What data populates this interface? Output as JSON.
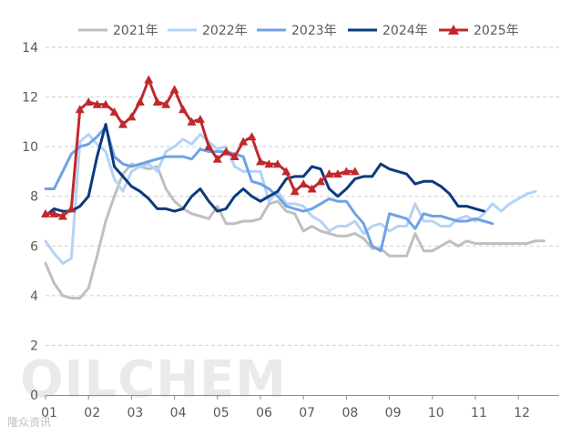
{
  "chart_data": {
    "type": "line",
    "title": "",
    "xlabel": "",
    "ylabel": "",
    "ylim": [
      0,
      14
    ],
    "yticks": [
      0,
      2,
      4,
      6,
      8,
      10,
      12,
      14
    ],
    "x_range": [
      1,
      12.95
    ],
    "x_ticks": [
      {
        "label": "01",
        "x": 1
      },
      {
        "label": "02",
        "x": 2
      },
      {
        "label": "03",
        "x": 3
      },
      {
        "label": "04",
        "x": 4
      },
      {
        "label": "05",
        "x": 5
      },
      {
        "label": "06",
        "x": 6
      },
      {
        "label": "07",
        "x": 7
      },
      {
        "label": "08",
        "x": 8
      },
      {
        "label": "09",
        "x": 9
      },
      {
        "label": "10",
        "x": 10
      },
      {
        "label": "11",
        "x": 11
      },
      {
        "label": "12",
        "x": 12
      }
    ],
    "grid": "horizontal dashed",
    "legend_position": "top",
    "series": [
      {
        "name": "2021年",
        "color": "#bfbfbf",
        "marker": "none",
        "points": [
          [
            1.0,
            5.3
          ],
          [
            1.2,
            4.5
          ],
          [
            1.4,
            4.0
          ],
          [
            1.6,
            3.9
          ],
          [
            1.8,
            3.9
          ],
          [
            2.0,
            4.3
          ],
          [
            2.2,
            5.6
          ],
          [
            2.4,
            7.0
          ],
          [
            2.6,
            8.0
          ],
          [
            2.8,
            8.9
          ],
          [
            3.0,
            9.3
          ],
          [
            3.2,
            9.2
          ],
          [
            3.4,
            9.1
          ],
          [
            3.6,
            9.2
          ],
          [
            3.8,
            8.3
          ],
          [
            4.0,
            7.8
          ],
          [
            4.2,
            7.5
          ],
          [
            4.4,
            7.3
          ],
          [
            4.6,
            7.2
          ],
          [
            4.8,
            7.1
          ],
          [
            5.0,
            7.6
          ],
          [
            5.2,
            6.9
          ],
          [
            5.4,
            6.9
          ],
          [
            5.6,
            7.0
          ],
          [
            5.8,
            7.0
          ],
          [
            6.0,
            7.1
          ],
          [
            6.2,
            7.7
          ],
          [
            6.4,
            7.8
          ],
          [
            6.6,
            7.4
          ],
          [
            6.8,
            7.3
          ],
          [
            7.0,
            6.6
          ],
          [
            7.2,
            6.8
          ],
          [
            7.4,
            6.6
          ],
          [
            7.6,
            6.5
          ],
          [
            7.8,
            6.4
          ],
          [
            8.0,
            6.4
          ],
          [
            8.2,
            6.5
          ],
          [
            8.4,
            6.3
          ],
          [
            8.6,
            5.9
          ],
          [
            8.8,
            5.9
          ],
          [
            9.0,
            5.6
          ],
          [
            9.2,
            5.6
          ],
          [
            9.4,
            5.6
          ],
          [
            9.6,
            6.5
          ],
          [
            9.8,
            5.8
          ],
          [
            10.0,
            5.8
          ],
          [
            10.2,
            6.0
          ],
          [
            10.4,
            6.2
          ],
          [
            10.6,
            6.0
          ],
          [
            10.8,
            6.2
          ],
          [
            11.0,
            6.1
          ],
          [
            11.2,
            6.1
          ],
          [
            11.4,
            6.1
          ],
          [
            11.6,
            6.1
          ],
          [
            11.8,
            6.1
          ],
          [
            12.0,
            6.1
          ],
          [
            12.2,
            6.1
          ],
          [
            12.4,
            6.2
          ],
          [
            12.6,
            6.2
          ]
        ]
      },
      {
        "name": "2022年",
        "color": "#b4d3f5",
        "marker": "none",
        "points": [
          [
            1.0,
            6.2
          ],
          [
            1.2,
            5.7
          ],
          [
            1.4,
            5.3
          ],
          [
            1.6,
            5.5
          ],
          [
            1.8,
            10.2
          ],
          [
            2.0,
            10.5
          ],
          [
            2.2,
            10.1
          ],
          [
            2.4,
            9.8
          ],
          [
            2.6,
            8.7
          ],
          [
            2.8,
            8.2
          ],
          [
            3.0,
            9.0
          ],
          [
            3.2,
            9.2
          ],
          [
            3.4,
            9.3
          ],
          [
            3.6,
            9.0
          ],
          [
            3.8,
            9.8
          ],
          [
            4.0,
            10.0
          ],
          [
            4.2,
            10.3
          ],
          [
            4.4,
            10.1
          ],
          [
            4.6,
            10.5
          ],
          [
            4.8,
            10.2
          ],
          [
            5.0,
            9.9
          ],
          [
            5.2,
            10.0
          ],
          [
            5.4,
            9.2
          ],
          [
            5.6,
            9.0
          ],
          [
            5.8,
            9.0
          ],
          [
            6.0,
            9.0
          ],
          [
            6.2,
            7.8
          ],
          [
            6.4,
            8.2
          ],
          [
            6.6,
            7.7
          ],
          [
            6.8,
            7.7
          ],
          [
            7.0,
            7.6
          ],
          [
            7.2,
            7.2
          ],
          [
            7.4,
            7.0
          ],
          [
            7.6,
            6.6
          ],
          [
            7.8,
            6.8
          ],
          [
            8.0,
            6.8
          ],
          [
            8.2,
            7.0
          ],
          [
            8.4,
            6.5
          ],
          [
            8.6,
            6.8
          ],
          [
            8.8,
            6.9
          ],
          [
            9.0,
            6.6
          ],
          [
            9.2,
            6.8
          ],
          [
            9.4,
            6.8
          ],
          [
            9.6,
            7.7
          ],
          [
            9.8,
            7.0
          ],
          [
            10.0,
            7.0
          ],
          [
            10.2,
            6.8
          ],
          [
            10.4,
            6.8
          ],
          [
            10.6,
            7.1
          ],
          [
            10.8,
            7.2
          ],
          [
            11.0,
            7.0
          ],
          [
            11.2,
            7.3
          ],
          [
            11.4,
            7.7
          ],
          [
            11.6,
            7.4
          ],
          [
            11.8,
            7.7
          ],
          [
            12.0,
            7.9
          ],
          [
            12.2,
            8.1
          ],
          [
            12.4,
            8.2
          ]
        ]
      },
      {
        "name": "2023年",
        "color": "#6fa2e5",
        "marker": "none",
        "points": [
          [
            1.0,
            8.3
          ],
          [
            1.2,
            8.3
          ],
          [
            1.4,
            9.0
          ],
          [
            1.6,
            9.7
          ],
          [
            1.8,
            10.0
          ],
          [
            2.0,
            10.1
          ],
          [
            2.2,
            10.4
          ],
          [
            2.4,
            10.8
          ],
          [
            2.6,
            9.6
          ],
          [
            2.8,
            9.3
          ],
          [
            3.0,
            9.2
          ],
          [
            3.2,
            9.3
          ],
          [
            3.4,
            9.4
          ],
          [
            3.6,
            9.5
          ],
          [
            3.8,
            9.6
          ],
          [
            4.0,
            9.6
          ],
          [
            4.2,
            9.6
          ],
          [
            4.4,
            9.5
          ],
          [
            4.6,
            9.9
          ],
          [
            4.8,
            9.8
          ],
          [
            5.0,
            9.8
          ],
          [
            5.2,
            9.8
          ],
          [
            5.4,
            9.7
          ],
          [
            5.6,
            9.6
          ],
          [
            5.8,
            8.6
          ],
          [
            6.0,
            8.5
          ],
          [
            6.2,
            8.3
          ],
          [
            6.4,
            8.0
          ],
          [
            6.6,
            7.6
          ],
          [
            6.8,
            7.5
          ],
          [
            7.0,
            7.4
          ],
          [
            7.2,
            7.5
          ],
          [
            7.4,
            7.7
          ],
          [
            7.6,
            7.9
          ],
          [
            7.8,
            7.8
          ],
          [
            8.0,
            7.8
          ],
          [
            8.2,
            7.3
          ],
          [
            8.4,
            6.9
          ],
          [
            8.6,
            6.0
          ],
          [
            8.8,
            5.8
          ],
          [
            9.0,
            7.3
          ],
          [
            9.2,
            7.2
          ],
          [
            9.4,
            7.1
          ],
          [
            9.6,
            6.7
          ],
          [
            9.8,
            7.3
          ],
          [
            10.0,
            7.2
          ],
          [
            10.2,
            7.2
          ],
          [
            10.4,
            7.1
          ],
          [
            10.6,
            7.0
          ],
          [
            10.8,
            7.0
          ],
          [
            11.0,
            7.1
          ],
          [
            11.2,
            7.0
          ],
          [
            11.4,
            6.9
          ]
        ]
      },
      {
        "name": "2024年",
        "color": "#0b3a7e",
        "marker": "none",
        "points": [
          [
            1.0,
            7.2
          ],
          [
            1.2,
            7.5
          ],
          [
            1.4,
            7.4
          ],
          [
            1.6,
            7.4
          ],
          [
            1.8,
            7.6
          ],
          [
            2.0,
            8.0
          ],
          [
            2.2,
            9.6
          ],
          [
            2.4,
            10.9
          ],
          [
            2.6,
            9.2
          ],
          [
            2.8,
            8.8
          ],
          [
            3.0,
            8.4
          ],
          [
            3.2,
            8.2
          ],
          [
            3.4,
            7.9
          ],
          [
            3.6,
            7.5
          ],
          [
            3.8,
            7.5
          ],
          [
            4.0,
            7.4
          ],
          [
            4.2,
            7.5
          ],
          [
            4.4,
            8.0
          ],
          [
            4.6,
            8.3
          ],
          [
            4.8,
            7.8
          ],
          [
            5.0,
            7.4
          ],
          [
            5.2,
            7.5
          ],
          [
            5.4,
            8.0
          ],
          [
            5.6,
            8.3
          ],
          [
            5.8,
            8.0
          ],
          [
            6.0,
            7.8
          ],
          [
            6.2,
            8.0
          ],
          [
            6.4,
            8.2
          ],
          [
            6.6,
            8.7
          ],
          [
            6.8,
            8.8
          ],
          [
            7.0,
            8.8
          ],
          [
            7.2,
            9.2
          ],
          [
            7.4,
            9.1
          ],
          [
            7.6,
            8.3
          ],
          [
            7.8,
            8.0
          ],
          [
            8.0,
            8.3
          ],
          [
            8.2,
            8.7
          ],
          [
            8.4,
            8.8
          ],
          [
            8.6,
            8.8
          ],
          [
            8.8,
            9.3
          ],
          [
            9.0,
            9.1
          ],
          [
            9.2,
            9.0
          ],
          [
            9.4,
            8.9
          ],
          [
            9.6,
            8.5
          ],
          [
            9.8,
            8.6
          ],
          [
            10.0,
            8.6
          ],
          [
            10.2,
            8.4
          ],
          [
            10.4,
            8.1
          ],
          [
            10.6,
            7.6
          ],
          [
            10.8,
            7.6
          ],
          [
            11.0,
            7.5
          ],
          [
            11.2,
            7.4
          ]
        ]
      },
      {
        "name": "2025年",
        "color": "#c0282d",
        "marker": "triangle",
        "points": [
          [
            1.0,
            7.3
          ],
          [
            1.2,
            7.3
          ],
          [
            1.4,
            7.2
          ],
          [
            1.6,
            7.5
          ],
          [
            1.8,
            11.5
          ],
          [
            2.0,
            11.8
          ],
          [
            2.2,
            11.7
          ],
          [
            2.4,
            11.7
          ],
          [
            2.6,
            11.4
          ],
          [
            2.8,
            10.9
          ],
          [
            3.0,
            11.2
          ],
          [
            3.2,
            11.8
          ],
          [
            3.4,
            12.7
          ],
          [
            3.6,
            11.8
          ],
          [
            3.8,
            11.7
          ],
          [
            4.0,
            12.3
          ],
          [
            4.2,
            11.5
          ],
          [
            4.4,
            11.0
          ],
          [
            4.6,
            11.1
          ],
          [
            4.8,
            10.0
          ],
          [
            5.0,
            9.5
          ],
          [
            5.2,
            9.8
          ],
          [
            5.4,
            9.6
          ],
          [
            5.6,
            10.2
          ],
          [
            5.8,
            10.4
          ],
          [
            6.0,
            9.4
          ],
          [
            6.2,
            9.3
          ],
          [
            6.4,
            9.3
          ],
          [
            6.6,
            9.0
          ],
          [
            6.8,
            8.2
          ],
          [
            7.0,
            8.5
          ],
          [
            7.2,
            8.3
          ],
          [
            7.4,
            8.6
          ],
          [
            7.6,
            8.9
          ],
          [
            7.8,
            8.9
          ],
          [
            8.0,
            9.0
          ],
          [
            8.2,
            9.0
          ]
        ]
      }
    ]
  },
  "watermark": {
    "text": "OILCHEM",
    "sub": "隆众资讯"
  }
}
